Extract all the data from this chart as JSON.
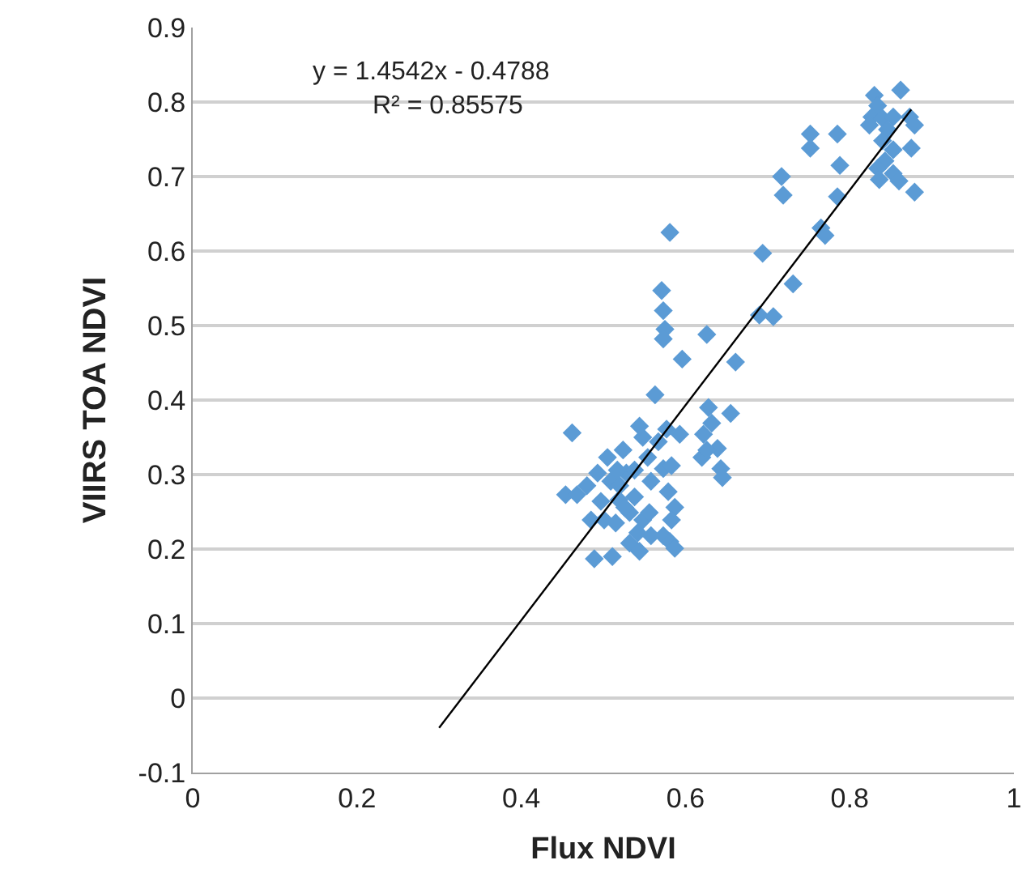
{
  "chart_data": {
    "type": "scatter",
    "xlabel": "Flux NDVI",
    "ylabel": "VIIRS TOA NDVI",
    "annotations": [
      "y = 1.4542x - 0.4788",
      "R² = 0.85575"
    ],
    "xlim": [
      0,
      1
    ],
    "xticks": [
      0,
      0.2,
      0.4,
      0.6,
      0.8,
      1
    ],
    "ylim": [
      -0.1,
      0.9
    ],
    "yticks": [
      -0.1,
      0,
      0.1,
      0.2,
      0.3,
      0.4,
      0.5,
      0.6,
      0.7,
      0.8,
      0.9
    ],
    "grid": "y",
    "series": [
      {
        "color": "#5b9bd5",
        "marker": "diamond",
        "x": [
          0.462,
          0.454,
          0.468,
          0.489,
          0.511,
          0.501,
          0.509,
          0.519,
          0.515,
          0.505,
          0.493,
          0.528,
          0.524,
          0.538,
          0.538,
          0.532,
          0.532,
          0.542,
          0.548,
          0.548,
          0.554,
          0.558,
          0.563,
          0.556,
          0.567,
          0.573,
          0.583,
          0.579,
          0.587,
          0.583,
          0.573,
          0.581,
          0.587,
          0.558,
          0.544,
          0.52,
          0.526,
          0.48,
          0.485,
          0.497,
          0.517,
          0.544,
          0.577,
          0.593,
          0.571,
          0.573,
          0.575,
          0.573,
          0.596,
          0.581,
          0.626,
          0.661,
          0.655,
          0.628,
          0.632,
          0.622,
          0.639,
          0.643,
          0.645,
          0.62,
          0.626,
          0.862,
          0.83,
          0.834,
          0.827,
          0.84,
          0.853,
          0.873,
          0.879,
          0.846,
          0.824,
          0.84,
          0.875,
          0.853,
          0.843,
          0.834,
          0.836,
          0.853,
          0.86,
          0.879,
          0.752,
          0.752,
          0.785,
          0.788,
          0.717,
          0.719,
          0.785,
          0.765,
          0.77,
          0.694,
          0.731,
          0.69,
          0.707
        ],
        "values": [
          0.356,
          0.273,
          0.273,
          0.187,
          0.19,
          0.239,
          0.291,
          0.266,
          0.235,
          0.323,
          0.302,
          0.302,
          0.333,
          0.306,
          0.27,
          0.249,
          0.208,
          0.222,
          0.239,
          0.35,
          0.323,
          0.291,
          0.407,
          0.249,
          0.344,
          0.308,
          0.312,
          0.277,
          0.256,
          0.239,
          0.218,
          0.21,
          0.201,
          0.218,
          0.197,
          0.285,
          0.256,
          0.285,
          0.239,
          0.264,
          0.306,
          0.365,
          0.361,
          0.354,
          0.547,
          0.52,
          0.495,
          0.482,
          0.455,
          0.625,
          0.488,
          0.451,
          0.382,
          0.39,
          0.369,
          0.354,
          0.335,
          0.308,
          0.296,
          0.323,
          0.333,
          0.816,
          0.809,
          0.795,
          0.78,
          0.778,
          0.78,
          0.78,
          0.769,
          0.763,
          0.769,
          0.748,
          0.738,
          0.736,
          0.721,
          0.711,
          0.696,
          0.704,
          0.694,
          0.679,
          0.757,
          0.738,
          0.757,
          0.715,
          0.7,
          0.675,
          0.673,
          0.631,
          0.621,
          0.597,
          0.556,
          0.514,
          0.512
        ]
      },
      {
        "type": "line",
        "color": "#000000",
        "line_style": "solid",
        "marker": "none",
        "x": [
          0.3,
          0.875
        ],
        "values": [
          -0.04,
          0.79
        ]
      }
    ]
  }
}
